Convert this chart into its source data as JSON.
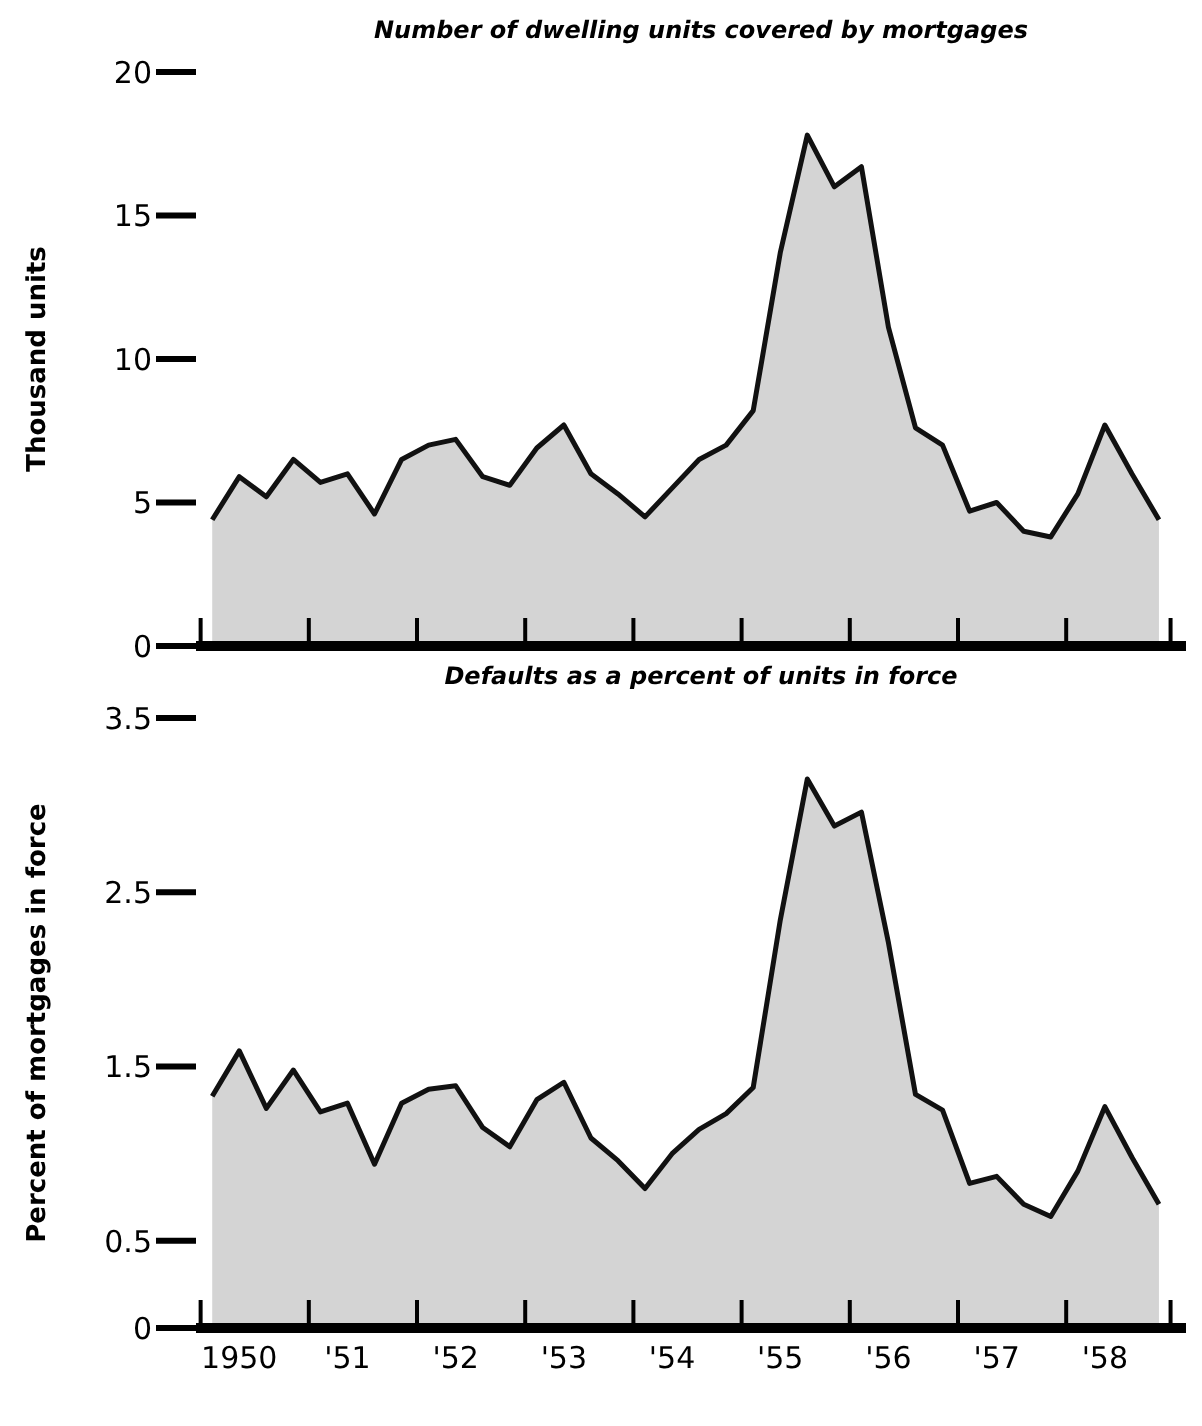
{
  "chart_data": [
    {
      "type": "area",
      "title": "Number of dwelling units covered by mortgages",
      "ylabel": "Thousand units",
      "grid": false,
      "legend": false,
      "categories": [
        null,
        null,
        null,
        null,
        null,
        null,
        null,
        null,
        null,
        null,
        null,
        null,
        null,
        null,
        null,
        null,
        null,
        null,
        null,
        null,
        null,
        null,
        null,
        null,
        null,
        null,
        null,
        null,
        null,
        null,
        null,
        null,
        null,
        null,
        null,
        null
      ],
      "series": [
        {
          "color": "#d4d4d4",
          "values": [
            4.4,
            5.9,
            5.2,
            6.5,
            5.7,
            6.0,
            4.6,
            6.5,
            7.0,
            7.2,
            5.9,
            5.6,
            6.9,
            7.7,
            6.0,
            5.3,
            4.5,
            5.5,
            6.5,
            7.0,
            8.2,
            13.7,
            17.8,
            16.0,
            16.7,
            11.1,
            7.6,
            7.0,
            4.7,
            5.0,
            4.0,
            3.8,
            5.3,
            7.7,
            6.0,
            4.4
          ]
        }
      ],
      "ylim": [
        0,
        20
      ],
      "yticks": [
        0,
        5,
        10,
        15,
        20
      ]
    },
    {
      "type": "area",
      "title": "Defaults as a percent of units in force",
      "ylabel": "Percent of mortgages in force",
      "grid": false,
      "legend": false,
      "categories": [
        null,
        "1950",
        null,
        null,
        null,
        "'51",
        null,
        null,
        null,
        "'52",
        null,
        null,
        null,
        "'53",
        null,
        null,
        null,
        "'54",
        null,
        null,
        null,
        "'55",
        null,
        null,
        null,
        "'56",
        null,
        null,
        null,
        "'57",
        null,
        null,
        null,
        "'58",
        null,
        null
      ],
      "series": [
        {
          "color": "#d4d4d4",
          "values": [
            1.33,
            1.59,
            1.26,
            1.48,
            1.24,
            1.29,
            0.94,
            1.29,
            1.37,
            1.39,
            1.15,
            1.04,
            1.31,
            1.41,
            1.09,
            0.96,
            0.8,
            1.0,
            1.14,
            1.23,
            1.38,
            2.34,
            3.15,
            2.88,
            2.96,
            2.21,
            1.34,
            1.25,
            0.83,
            0.87,
            0.71,
            0.64,
            0.9,
            1.27,
            0.98,
            0.71
          ]
        }
      ],
      "ylim": [
        0,
        3.5
      ],
      "yticks": [
        0,
        0.5,
        1.5,
        2.5,
        3.5
      ]
    }
  ]
}
